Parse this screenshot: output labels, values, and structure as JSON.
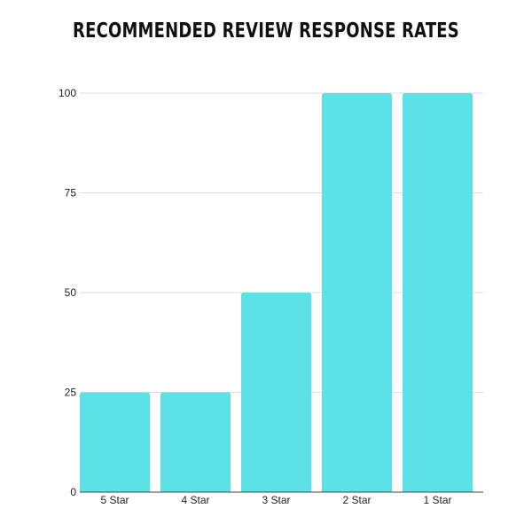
{
  "chart_data": {
    "type": "bar",
    "title": "RECOMMENDED REVIEW RESPONSE RATES",
    "categories": [
      "5 Star",
      "4 Star",
      "3 Star",
      "2 Star",
      "1 Star"
    ],
    "values": [
      25,
      25,
      50,
      100,
      100
    ],
    "yticks": [
      "0",
      "25",
      "50",
      "75",
      "100"
    ],
    "ylim": [
      0,
      100
    ],
    "xlabel": "",
    "ylabel": "",
    "grid": true,
    "colors": {
      "bar": "#5ce1e6",
      "grid": "#dddddd",
      "axis": "#444444"
    }
  }
}
